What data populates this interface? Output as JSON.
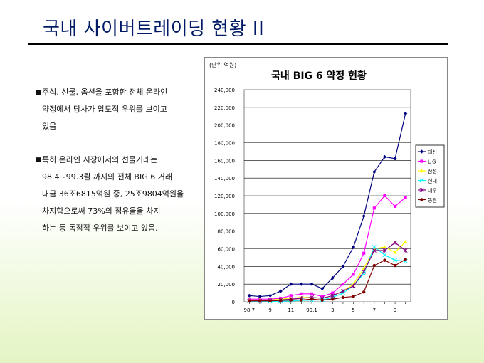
{
  "slide": {
    "title": "국내 사이버트레이딩 현황 II",
    "bullets": [
      {
        "marker": "■",
        "lines": [
          "주식, 선물, 옵션을 포함한 전체 온라인",
          "약정에서 당사가 압도적 우위를 보이고",
          "있음"
        ]
      },
      {
        "marker": "■",
        "lines": [
          "특히 온라인 시장에서의 선물거래는",
          "98.4~99.3월 까지의 전체 BIG 6 거래",
          "대금 36조6815억원 중, 25조9804억원을",
          "차지함으로써 73%의 점유율을 차지",
          "하는 등  독점적 우위를 보이고 있음."
        ]
      }
    ]
  },
  "chart_data": {
    "type": "line",
    "title": "국내 BIG 6 약정 현황",
    "unit_label": "(단위 억원)",
    "x_tick_labels": [
      "98.7",
      "",
      "9",
      "",
      "11",
      "",
      "99.1",
      "",
      "3",
      "",
      "5",
      "",
      "7",
      "",
      "9",
      ""
    ],
    "ylim": [
      0,
      240000
    ],
    "y_ticks": [
      "0",
      "20,000",
      "40,000",
      "60,000",
      "80,000",
      "100,000",
      "120,000",
      "140,000",
      "160,000",
      "180,000",
      "200,000",
      "220,000",
      "240,000"
    ],
    "grid": true,
    "legend_position": "right",
    "series": [
      {
        "name": "대신",
        "color": "#000080",
        "marker": "diamond",
        "values": [
          7000,
          6000,
          7000,
          12000,
          20000,
          20000,
          20000,
          15000,
          27000,
          40000,
          62000,
          97000,
          147000,
          164000,
          162000,
          213000
        ]
      },
      {
        "name": "L G",
        "color": "#ff00ff",
        "marker": "square",
        "values": [
          3000,
          3000,
          3000,
          4000,
          7000,
          9000,
          9000,
          6000,
          10000,
          20000,
          31000,
          55000,
          106000,
          120000,
          108000,
          118000
        ]
      },
      {
        "name": "삼성",
        "color": "#ffff00",
        "marker": "triangle",
        "values": [
          2000,
          2000,
          2000,
          3000,
          4000,
          5000,
          5000,
          4000,
          7000,
          12000,
          20000,
          38000,
          60000,
          62000,
          56000,
          68000
        ]
      },
      {
        "name": "현대",
        "color": "#00ffff",
        "marker": "x",
        "values": [
          500,
          500,
          500,
          500,
          1000,
          1500,
          2000,
          2000,
          5000,
          10000,
          18000,
          32000,
          62000,
          53000,
          47000,
          46000
        ]
      },
      {
        "name": "대우",
        "color": "#800080",
        "marker": "star",
        "values": [
          1000,
          1000,
          1500,
          2000,
          3000,
          4000,
          5000,
          4000,
          7000,
          12000,
          18000,
          34000,
          58000,
          58000,
          67000,
          58000
        ]
      },
      {
        "name": "동원",
        "color": "#800000",
        "marker": "circle",
        "values": [
          1000,
          1000,
          1000,
          1500,
          2000,
          2000,
          3000,
          2000,
          3000,
          5000,
          6000,
          11000,
          41000,
          47000,
          41000,
          48000
        ]
      }
    ]
  }
}
